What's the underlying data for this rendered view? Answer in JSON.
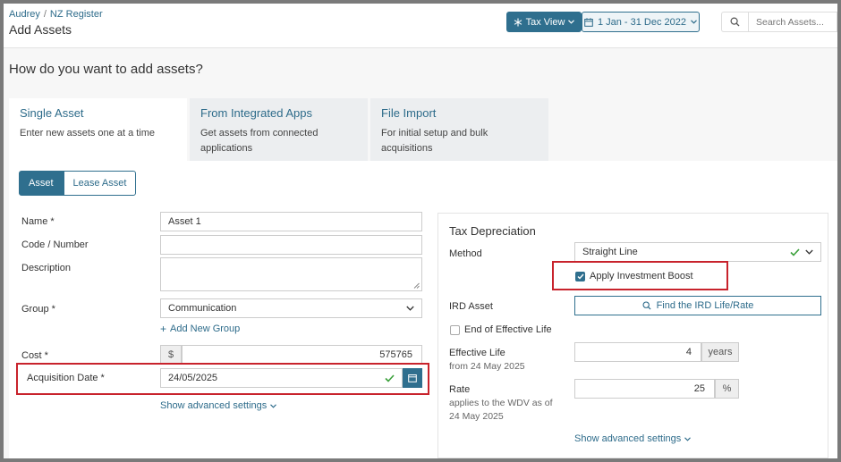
{
  "header": {
    "breadcrumb": [
      "Audrey",
      "NZ Register"
    ],
    "title": "Add Assets",
    "tax_view_label": "Tax View",
    "date_range_label": "1 Jan - 31 Dec 2022",
    "search_placeholder": "Search Assets..."
  },
  "question": "How do you want to add assets?",
  "tabs": [
    {
      "title": "Single Asset",
      "desc": "Enter new assets one at a time"
    },
    {
      "title": "From Integrated Apps",
      "desc": "Get assets from connected applications"
    },
    {
      "title": "File Import",
      "desc": "For initial setup and bulk acquisitions"
    }
  ],
  "segments": {
    "asset": "Asset",
    "lease": "Lease Asset"
  },
  "form": {
    "name_label": "Name *",
    "name_value": "Asset 1",
    "code_label": "Code / Number",
    "code_value": "",
    "description_label": "Description",
    "group_label": "Group *",
    "group_value": "Communication",
    "add_group_label": "Add New Group",
    "cost_label": "Cost *",
    "cost_currency": "$",
    "cost_value": "575765",
    "acq_date_label": "Acquisition Date *",
    "acq_date_value": "24/05/2025",
    "advanced_label": "Show advanced settings"
  },
  "tax": {
    "title": "Tax Depreciation",
    "method_label": "Method",
    "method_value": "Straight Line",
    "investment_boost_label": "Apply Investment Boost",
    "investment_boost_checked": true,
    "ird_label": "IRD Asset",
    "find_label": "Find the IRD Life/Rate",
    "end_of_life_label": "End of Effective Life",
    "effective_life_label": "Effective Life",
    "effective_life_sub": "from 24 May 2025",
    "effective_life_value": "4",
    "effective_life_unit": "years",
    "rate_label": "Rate",
    "rate_sub": "applies to the WDV as of 24 May 2025",
    "rate_value": "25",
    "rate_unit": "%",
    "advanced_label": "Show advanced settings"
  },
  "colors": {
    "primary": "#2f6f8e",
    "highlight": "#c8232c",
    "success": "#3aa03a"
  }
}
